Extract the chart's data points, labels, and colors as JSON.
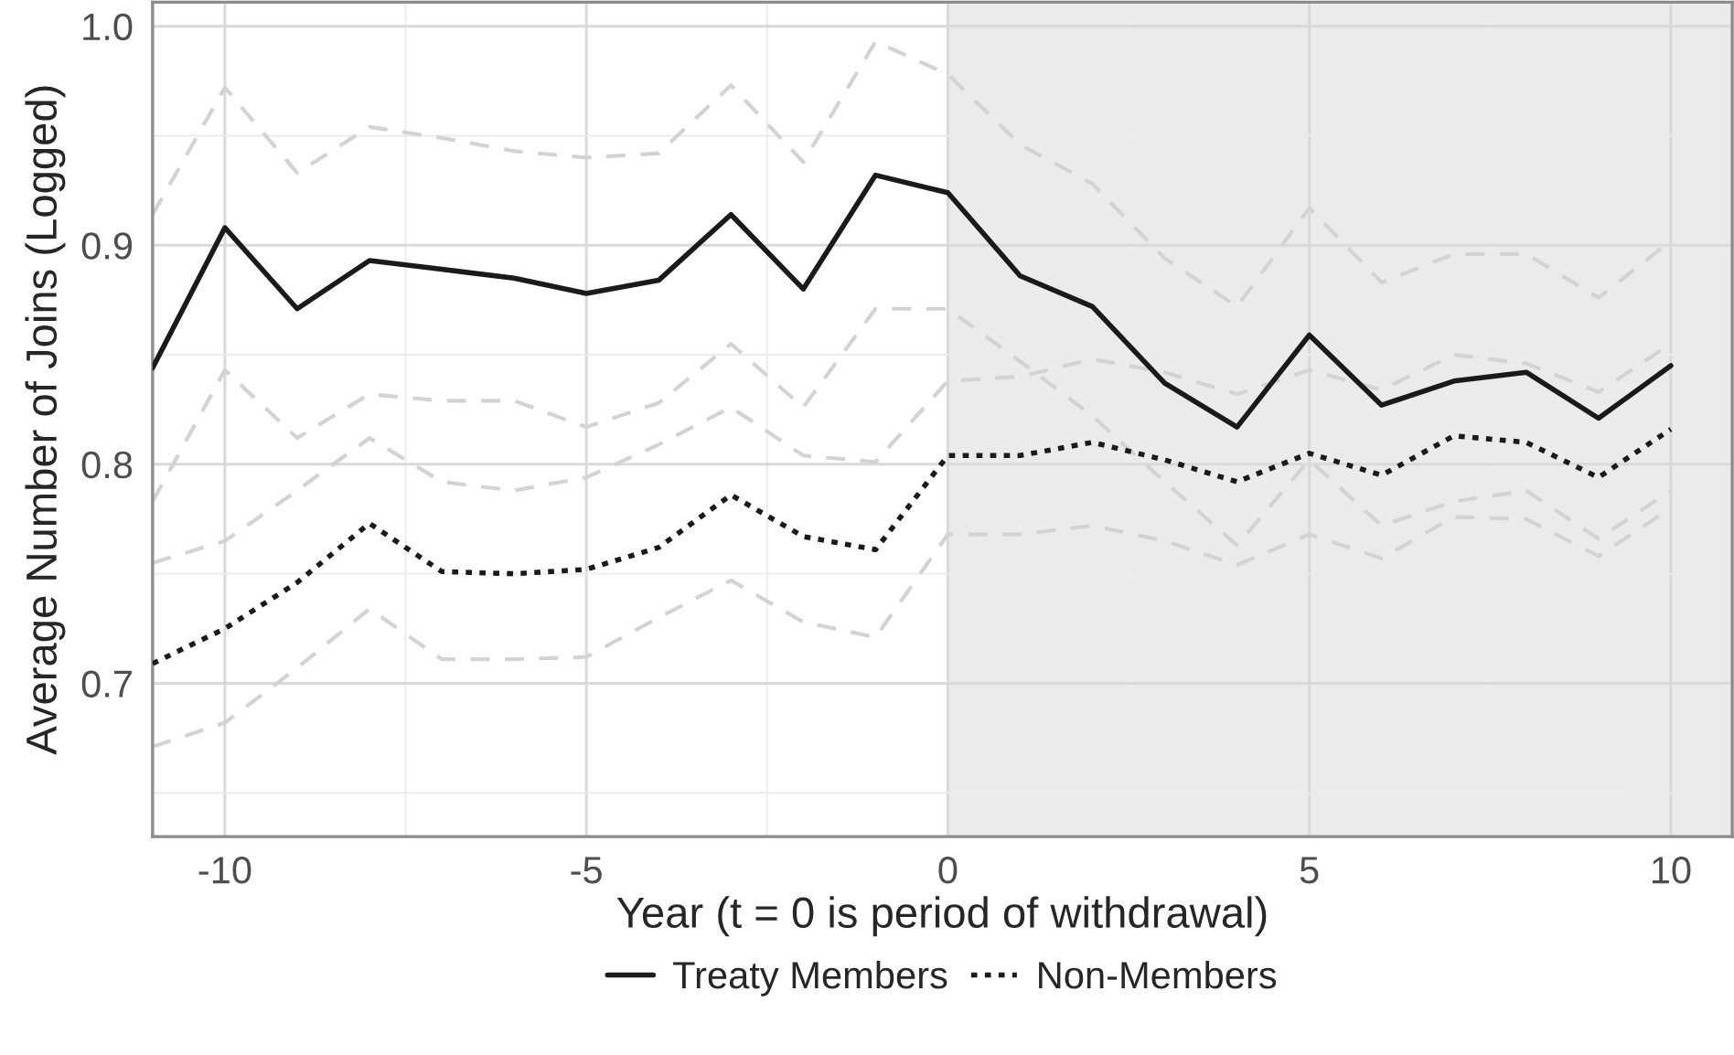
{
  "chart_data": {
    "type": "line",
    "xlabel": "Year (t = 0 is period of withdrawal)",
    "ylabel": "Average Number of Joins (Logged)",
    "x": [
      -11,
      -10,
      -9,
      -8,
      -7,
      -6,
      -5,
      -4,
      -3,
      -2,
      -1,
      0,
      1,
      2,
      3,
      4,
      5,
      6,
      7,
      8,
      9,
      10
    ],
    "series": [
      {
        "color": "#d3d3d3",
        "line_style": "dashed",
        "values": [
          0.914,
          0.972,
          0.933,
          0.954,
          0.949,
          0.943,
          0.94,
          0.942,
          0.973,
          0.938,
          0.993,
          0.978,
          0.946,
          0.928,
          0.894,
          0.872,
          0.917,
          0.883,
          0.896,
          0.896,
          0.876,
          0.902
        ]
      },
      {
        "color": "#d3d3d3",
        "line_style": "dashed",
        "values": [
          0.783,
          0.843,
          0.812,
          0.832,
          0.829,
          0.829,
          0.817,
          0.828,
          0.855,
          0.826,
          0.871,
          0.871,
          0.847,
          0.822,
          0.792,
          0.763,
          0.802,
          0.772,
          0.783,
          0.788,
          0.766,
          0.788
        ]
      },
      {
        "color": "#d3d3d3",
        "line_style": "dashed",
        "values": [
          0.755,
          0.765,
          0.788,
          0.812,
          0.792,
          0.788,
          0.794,
          0.809,
          0.826,
          0.804,
          0.801,
          0.838,
          0.84,
          0.848,
          0.842,
          0.832,
          0.843,
          0.834,
          0.85,
          0.846,
          0.833,
          0.855
        ]
      },
      {
        "color": "#d3d3d3",
        "line_style": "dashed",
        "values": [
          0.671,
          0.682,
          0.707,
          0.734,
          0.711,
          0.711,
          0.712,
          0.73,
          0.747,
          0.728,
          0.721,
          0.768,
          0.768,
          0.772,
          0.765,
          0.754,
          0.768,
          0.757,
          0.776,
          0.775,
          0.758,
          0.78
        ]
      },
      {
        "name": "Treaty Members",
        "color": "#1a1a1a",
        "line_style": "solid",
        "values": [
          0.844,
          0.908,
          0.871,
          0.893,
          0.889,
          0.885,
          0.878,
          0.884,
          0.914,
          0.88,
          0.932,
          0.924,
          0.886,
          0.872,
          0.837,
          0.817,
          0.859,
          0.827,
          0.838,
          0.842,
          0.821,
          0.845
        ]
      },
      {
        "name": "Non-Members",
        "color": "#1a1a1a",
        "line_style": "dotted",
        "values": [
          0.709,
          0.725,
          0.746,
          0.773,
          0.751,
          0.75,
          0.752,
          0.762,
          0.786,
          0.767,
          0.761,
          0.804,
          0.804,
          0.81,
          0.802,
          0.792,
          0.805,
          0.795,
          0.813,
          0.81,
          0.794,
          0.816
        ]
      }
    ],
    "xlim": [
      -11,
      10.85
    ],
    "ylim": [
      0.63,
      1.011
    ],
    "xticks": [
      -10,
      -5,
      0,
      5,
      10
    ],
    "yticks": [
      0.7,
      0.8,
      0.9,
      {
        "value": 1.0,
        "label": "1.0"
      }
    ],
    "bands": [
      {
        "axis": "x",
        "from": 0,
        "to": 10.85,
        "color": "#ebebeb"
      }
    ],
    "grid": true,
    "legend": "bottom",
    "marker": "none"
  }
}
